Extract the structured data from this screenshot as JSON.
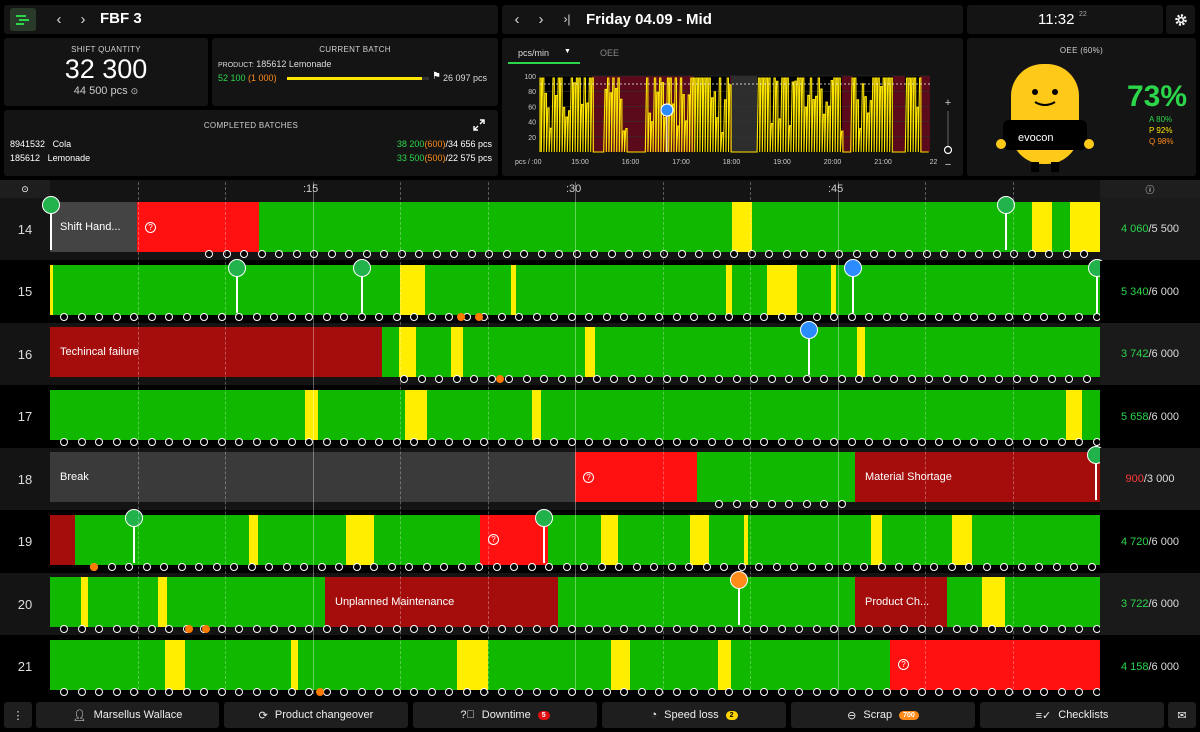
{
  "header": {
    "line_name": "FBF 3",
    "shift_title": "Friday 04.09 - Mid",
    "clock": "11:32",
    "clock_seconds": "22"
  },
  "shift_quantity": {
    "caption": "SHIFT QUANTITY",
    "value": "32 300",
    "target": "44 500 pcs"
  },
  "current_batch": {
    "caption": "CURRENT BATCH",
    "product_prefix": "PRODUCT:",
    "product": "185612 Lemonade",
    "good": "52 100",
    "scrap": "(1 000)",
    "target": "26 097 pcs",
    "progress": 0.95
  },
  "completed_batches": {
    "caption": "COMPLETED BATCHES",
    "rows": [
      {
        "id": "8941532",
        "name": "Cola",
        "good": "38 200",
        "scrap": "(600)",
        "target": "/34 656 pcs"
      },
      {
        "id": "185612",
        "name": "Lemonade",
        "good": "33 500",
        "scrap": "(500)",
        "target": "/22 575 pcs"
      }
    ]
  },
  "speed_chart": {
    "tab_active": "pcs/min",
    "tab_inactive": "OEE",
    "y_ticks": [
      "100",
      "80",
      "60",
      "40",
      "20"
    ],
    "x_label_prefix": "pcs / :00",
    "x_ticks": [
      "15:00",
      "16:00",
      "17:00",
      "18:00",
      "19:00",
      "20:00",
      "21:00",
      "22"
    ]
  },
  "oee": {
    "caption": "OEE (60%)",
    "value": "73%",
    "a": "A 80%",
    "p": "P 92%",
    "q": "Q 98%",
    "mascot_text": "evocon"
  },
  "timeline": {
    "ticks": [
      ":15",
      ":30",
      ":45"
    ],
    "rows": [
      {
        "hour": "14",
        "good": "4 060",
        "target": "/5 500",
        "good_color": "#2bd64b"
      },
      {
        "hour": "15",
        "good": "5 340",
        "target": "/6 000",
        "good_color": "#2bd64b"
      },
      {
        "hour": "16",
        "good": "3 742",
        "target": "/6 000",
        "good_color": "#2bd64b"
      },
      {
        "hour": "17",
        "good": "5 658",
        "target": "/6 000",
        "good_color": "#2bd64b"
      },
      {
        "hour": "18",
        "good": "900",
        "target": "/3 000",
        "good_color": "#ff3b3b"
      },
      {
        "hour": "19",
        "good": "4 720",
        "target": "/6 000",
        "good_color": "#2bd64b"
      },
      {
        "hour": "20",
        "good": "3 722",
        "target": "/6 000",
        "good_color": "#2bd64b"
      },
      {
        "hour": "21",
        "good": "4 158",
        "target": "/6 000",
        "good_color": "#2bd64b"
      }
    ],
    "labels": {
      "shift_handover": "Shift Hand...",
      "technical_failure": "Techincal failure",
      "break": "Break",
      "material_shortage": "Material Shortage",
      "unplanned_maintenance": "Unplanned Maintenance",
      "product_change": "Product Ch..."
    }
  },
  "bottom_bar": {
    "operator": "Marsellus Wallace",
    "changeover": "Product changeover",
    "downtime": "Downtime",
    "downtime_count": "5",
    "speed_loss": "Speed loss",
    "speed_loss_count": "2",
    "scrap": "Scrap",
    "scrap_count": "700",
    "checklists": "Checklists"
  },
  "colors": {
    "green": "#11b800",
    "yellow": "#ffee00",
    "red": "#ff1111",
    "dark_red": "#a50d0d",
    "accent_green": "#2bd64b"
  }
}
